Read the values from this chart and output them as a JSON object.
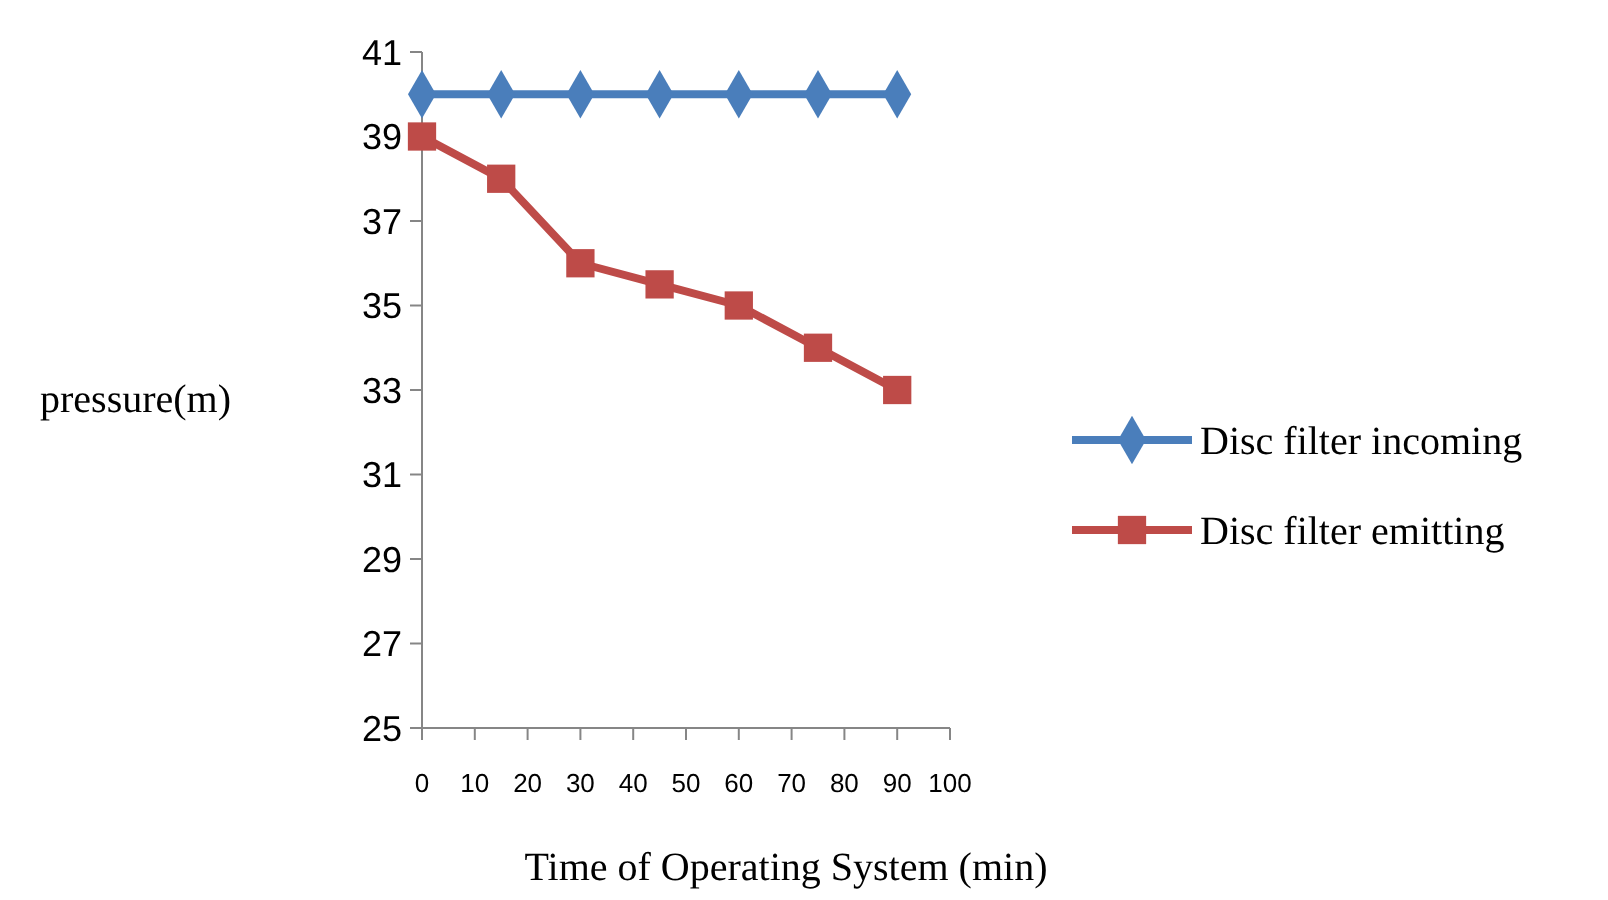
{
  "chart_data": {
    "type": "line",
    "xlabel": "Time of Operating System (min)",
    "ylabel": "pressure(m)",
    "x": [
      0,
      15,
      30,
      45,
      60,
      75,
      90
    ],
    "xlim": [
      0,
      100
    ],
    "xticks": [
      0,
      10,
      20,
      30,
      40,
      50,
      60,
      70,
      80,
      90,
      100
    ],
    "ylim": [
      25,
      41
    ],
    "yticks": [
      25,
      27,
      29,
      31,
      33,
      35,
      37,
      39,
      41
    ],
    "series": [
      {
        "name": "Disc filter incoming",
        "color": "#4a7ebb",
        "marker": "diamond",
        "values": [
          40,
          40,
          40,
          40,
          40,
          40,
          40
        ]
      },
      {
        "name": "Disc filter emitting",
        "color": "#be4b48",
        "marker": "square",
        "values": [
          39,
          38,
          36,
          35.5,
          35,
          34,
          33
        ]
      }
    ],
    "grid": false,
    "legend": "right",
    "line_style": "solid"
  }
}
